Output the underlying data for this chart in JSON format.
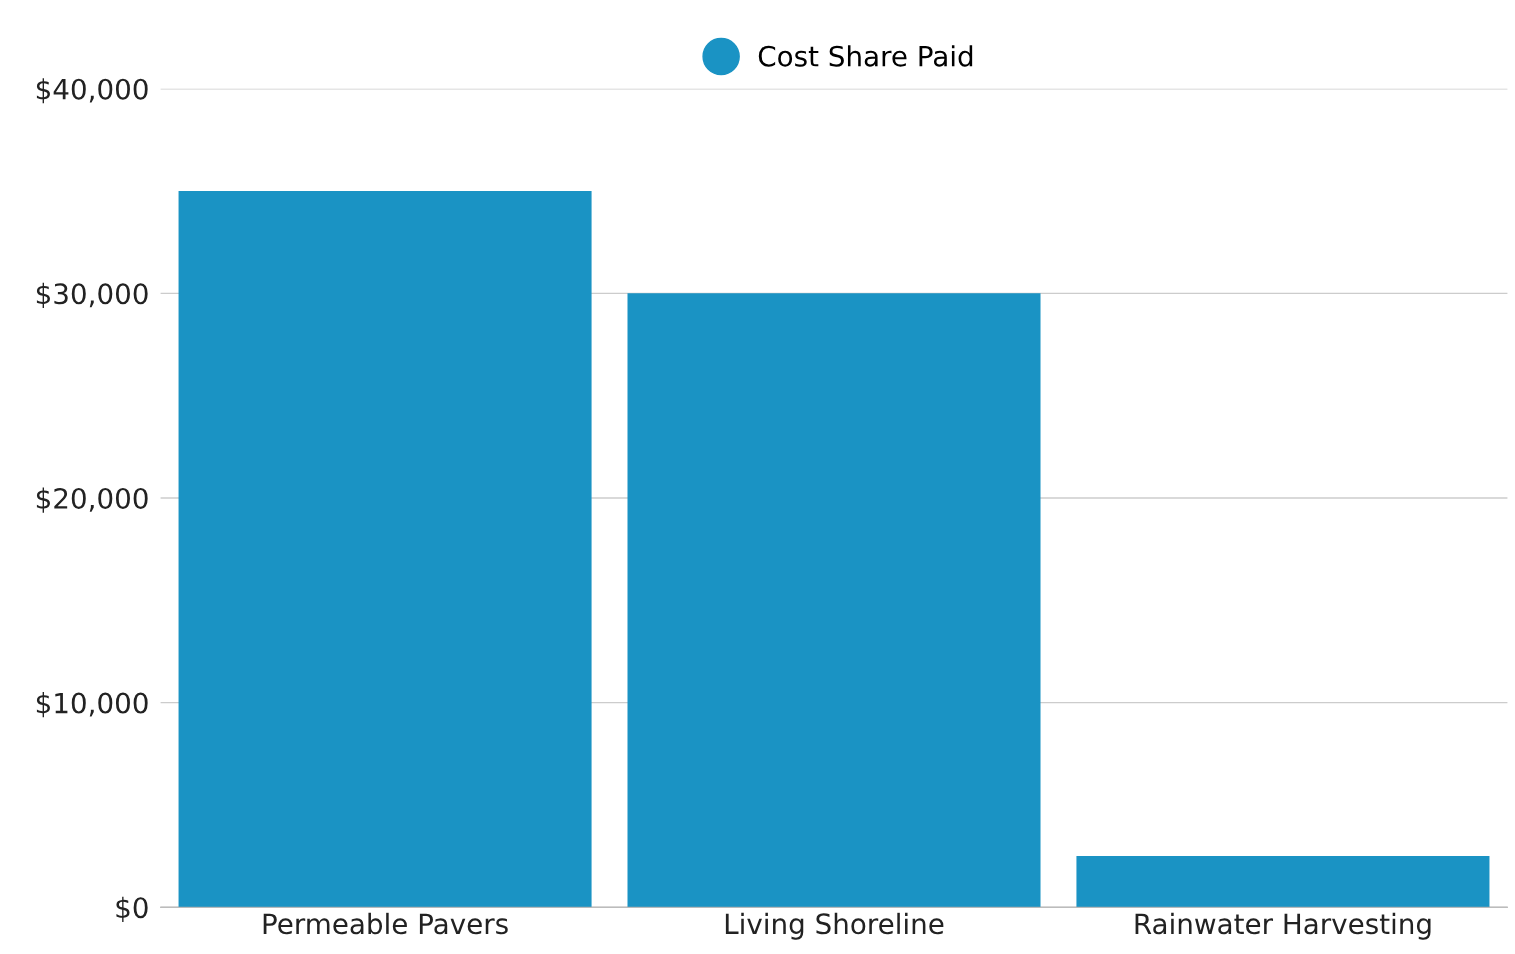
{
  "chart_data": {
    "type": "bar",
    "categories": [
      "Permeable Pavers",
      "Living Shoreline",
      "Rainwater Harvesting"
    ],
    "series": [
      {
        "name": "Cost Share Paid",
        "color": "#1a93c4",
        "values": [
          35000,
          30000,
          2500
        ]
      }
    ],
    "ylim": [
      0,
      40000
    ],
    "yticks": [
      {
        "value": 0,
        "label": "$0"
      },
      {
        "value": 10000,
        "label": "$10,000"
      },
      {
        "value": 20000,
        "label": "$20,000"
      },
      {
        "value": 30000,
        "label": "$30,000"
      },
      {
        "value": 40000,
        "label": "$40,000"
      }
    ],
    "grid": "y",
    "legend": "top",
    "marker": "circle"
  }
}
